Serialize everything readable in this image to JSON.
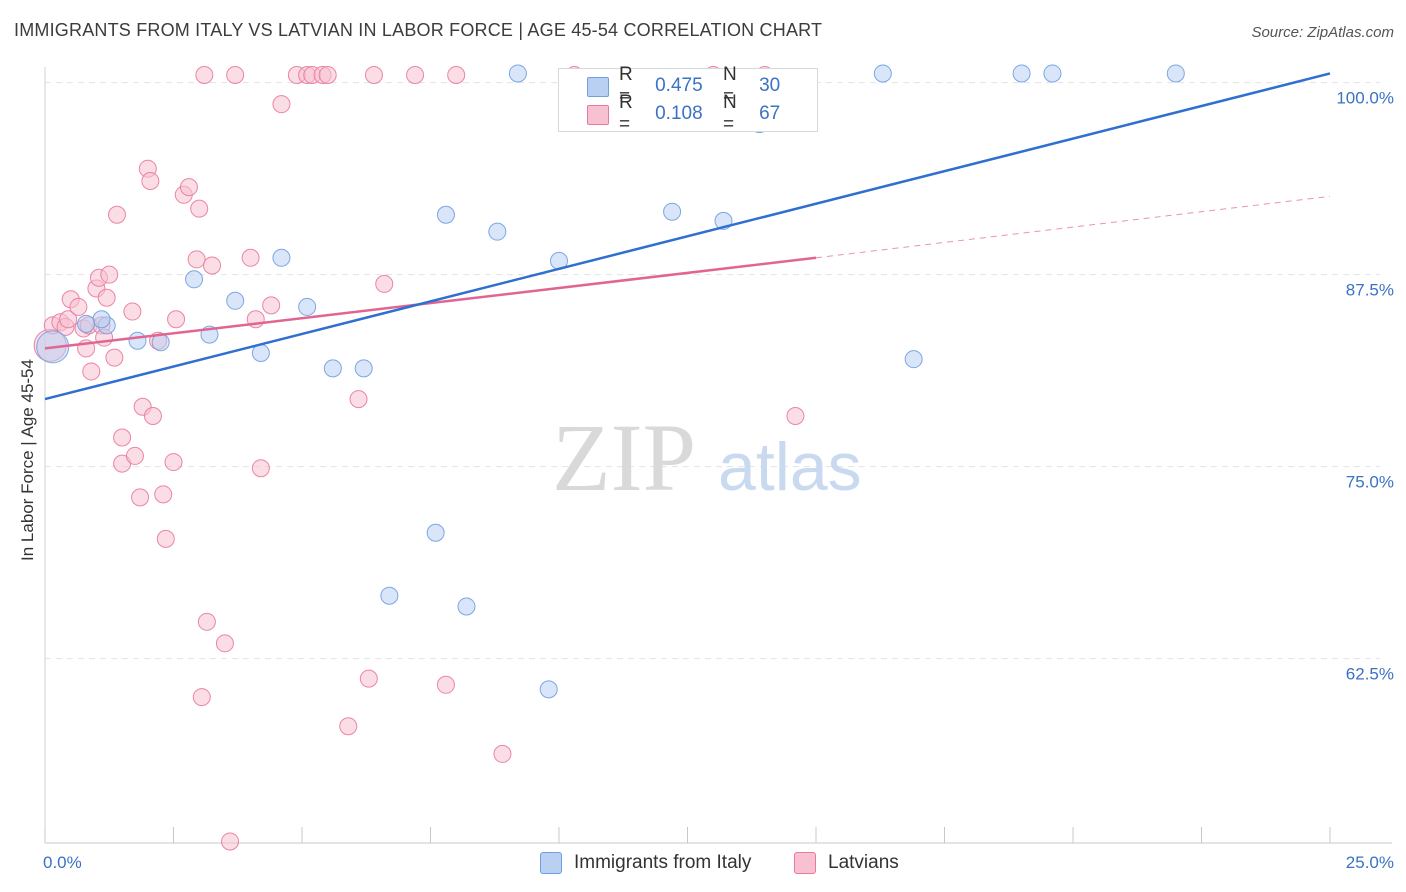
{
  "header": {
    "title": "IMMIGRANTS FROM ITALY VS LATVIAN IN LABOR FORCE | AGE 45-54 CORRELATION CHART",
    "source": "Source: ZipAtlas.com"
  },
  "watermark": {
    "zip": "ZIP",
    "atlas": "atlas"
  },
  "legend": {
    "rows": [
      {
        "r_label": "R =",
        "r_value": "0.475",
        "n_label": "N =",
        "n_value": "30"
      },
      {
        "r_label": "R =",
        "r_value": "0.108",
        "n_label": "N =",
        "n_value": "67"
      }
    ]
  },
  "bottom_legend": {
    "italy": "Immigrants from Italy",
    "latvians": "Latvians"
  },
  "colors": {
    "italy": "#6f9fe0",
    "italy_fill": "#b9d0f3",
    "latvians": "#e9799d",
    "latvians_fill": "#f7c1d1",
    "italy_line": "#2f6fcf",
    "latvians_line": "#e06592",
    "tick_text": "#3a72c4"
  },
  "chart_data": {
    "type": "scatter",
    "title": "IMMIGRANTS FROM ITALY VS LATVIAN IN LABOR FORCE | AGE 45-54 CORRELATION CHART",
    "xlabel": "",
    "ylabel": "In Labor Force | Age 45-54",
    "xlim": [
      0,
      25
    ],
    "ylim": [
      50.5,
      100.5
    ],
    "x_tick_labels": [
      "0.0%",
      "25.0%"
    ],
    "y_ticks": [
      62.5,
      75.0,
      87.5,
      100.0
    ],
    "y_tick_labels": [
      "62.5%",
      "75.0%",
      "87.5%",
      "100.0%"
    ],
    "grid": true,
    "series": [
      {
        "name": "Immigrants from Italy",
        "r": 0.475,
        "n": 30,
        "trend": {
          "x": [
            0,
            25
          ],
          "y": [
            79.4,
            100.6
          ]
        },
        "points": [
          [
            0.15,
            82.8,
            "big"
          ],
          [
            1.2,
            84.2
          ],
          [
            1.8,
            83.2
          ],
          [
            2.25,
            83.1
          ],
          [
            2.9,
            87.2
          ],
          [
            3.2,
            83.6
          ],
          [
            3.7,
            85.8
          ],
          [
            4.2,
            82.4
          ],
          [
            4.6,
            88.6
          ],
          [
            5.1,
            85.4
          ],
          [
            5.6,
            81.4
          ],
          [
            6.2,
            81.4
          ],
          [
            7.6,
            70.7
          ],
          [
            6.7,
            66.6
          ],
          [
            7.8,
            91.4
          ],
          [
            8.2,
            65.9
          ],
          [
            8.8,
            90.3
          ],
          [
            9.2,
            100.6
          ],
          [
            9.8,
            60.5
          ],
          [
            10.0,
            88.4
          ],
          [
            12.2,
            91.6
          ],
          [
            13.2,
            91.0
          ],
          [
            13.9,
            97.3
          ],
          [
            16.9,
            82.0
          ],
          [
            16.3,
            100.6
          ],
          [
            19.0,
            100.6
          ],
          [
            19.6,
            100.6
          ],
          [
            22.0,
            100.6
          ],
          [
            1.1,
            84.6
          ],
          [
            0.8,
            84.3
          ]
        ]
      },
      {
        "name": "Latvians",
        "r": 0.108,
        "n": 67,
        "trend": {
          "x": [
            0,
            15
          ],
          "y": [
            82.7,
            88.6
          ]
        },
        "trend_dashed": {
          "x": [
            15,
            25
          ],
          "y": [
            88.6,
            92.6
          ]
        },
        "points": [
          [
            0.1,
            82.9,
            "big"
          ],
          [
            0.15,
            84.2
          ],
          [
            0.3,
            84.4
          ],
          [
            0.4,
            84.1
          ],
          [
            0.45,
            84.6
          ],
          [
            0.5,
            85.9
          ],
          [
            0.65,
            85.4
          ],
          [
            0.75,
            84.0
          ],
          [
            0.8,
            82.7
          ],
          [
            0.85,
            84.2
          ],
          [
            0.9,
            81.2
          ],
          [
            1.0,
            86.6
          ],
          [
            1.05,
            87.3
          ],
          [
            1.1,
            84.2
          ],
          [
            1.15,
            83.4
          ],
          [
            1.2,
            86.0
          ],
          [
            1.25,
            87.5
          ],
          [
            1.35,
            82.1
          ],
          [
            1.4,
            91.4
          ],
          [
            1.5,
            76.9
          ],
          [
            1.5,
            75.2
          ],
          [
            1.7,
            85.1
          ],
          [
            1.75,
            75.7
          ],
          [
            1.85,
            73.0
          ],
          [
            1.9,
            78.9
          ],
          [
            2.0,
            94.4
          ],
          [
            2.05,
            93.6
          ],
          [
            2.1,
            78.3
          ],
          [
            2.2,
            83.2
          ],
          [
            2.3,
            73.2
          ],
          [
            2.35,
            70.3
          ],
          [
            2.5,
            75.3
          ],
          [
            2.55,
            84.6
          ],
          [
            2.7,
            92.7
          ],
          [
            2.8,
            93.2
          ],
          [
            2.95,
            88.5
          ],
          [
            3.0,
            91.8
          ],
          [
            3.05,
            60.0
          ],
          [
            3.1,
            100.5
          ],
          [
            3.15,
            64.9
          ],
          [
            3.25,
            88.1
          ],
          [
            3.5,
            63.5
          ],
          [
            3.6,
            50.6
          ],
          [
            3.7,
            100.5
          ],
          [
            4.0,
            88.6
          ],
          [
            4.1,
            84.6
          ],
          [
            4.2,
            74.9
          ],
          [
            4.4,
            85.5
          ],
          [
            4.6,
            98.6
          ],
          [
            4.9,
            100.5
          ],
          [
            5.1,
            100.5
          ],
          [
            5.2,
            100.5
          ],
          [
            5.4,
            100.5
          ],
          [
            5.5,
            100.5
          ],
          [
            5.9,
            58.1
          ],
          [
            6.1,
            79.4
          ],
          [
            6.3,
            61.2
          ],
          [
            6.4,
            100.5
          ],
          [
            6.6,
            86.9
          ],
          [
            7.2,
            100.5
          ],
          [
            7.8,
            60.8
          ],
          [
            8.0,
            100.5
          ],
          [
            8.9,
            56.3
          ],
          [
            10.3,
            100.5
          ],
          [
            13.0,
            100.5
          ],
          [
            14.0,
            100.5
          ],
          [
            14.6,
            78.3
          ]
        ]
      }
    ]
  }
}
